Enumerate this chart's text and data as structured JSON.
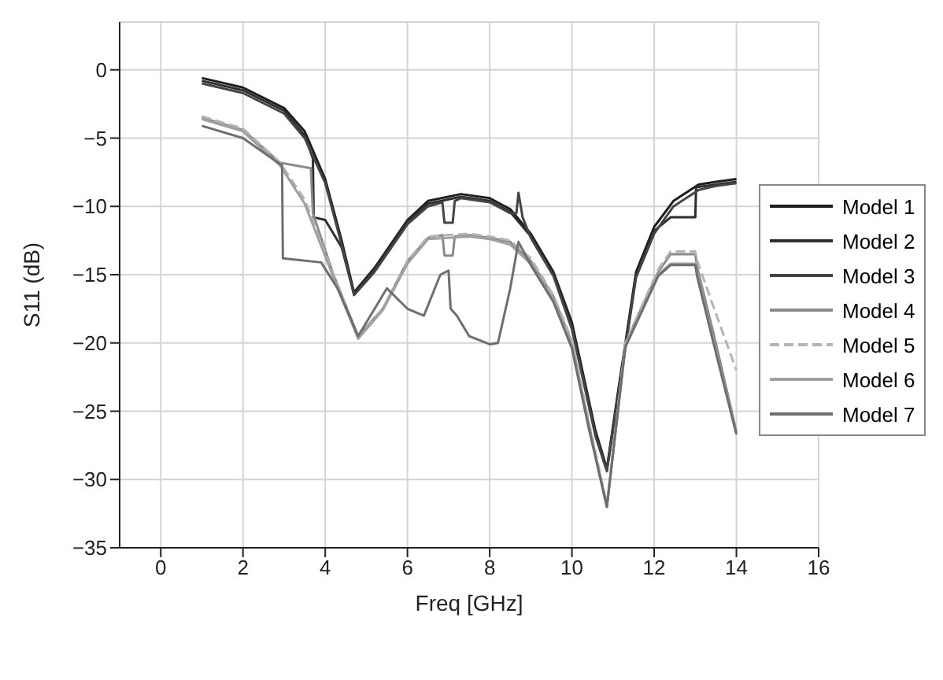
{
  "chart_data": {
    "type": "line",
    "xlabel": "Freq [GHz]",
    "ylabel": "S11 (dB)",
    "xlim": [
      -1,
      16
    ],
    "xticks": [
      0,
      2,
      4,
      6,
      8,
      10,
      12,
      14,
      16
    ],
    "ylim": [
      -35,
      3.5
    ],
    "yticks": [
      -35,
      -30,
      -25,
      -20,
      -15,
      -10,
      -5,
      0
    ],
    "grid": true,
    "legend": "right",
    "marker": "none",
    "line_style": "solid",
    "series": [
      {
        "name": "Model 1",
        "color": "#1e1e1e",
        "x": [
          1,
          2,
          3,
          3.5,
          4,
          4.4,
          4.7,
          5.2,
          6,
          6.5,
          7.3,
          8,
          8.5,
          9,
          9.55,
          10,
          10.57,
          10.85,
          11.1,
          11.56,
          12,
          12.47,
          13.08,
          13.5,
          14
        ],
        "values": [
          -0.6,
          -1.3,
          -2.8,
          -4.5,
          -8,
          -12.5,
          -16.3,
          -14.5,
          -11,
          -9.6,
          -9.1,
          -9.4,
          -10.2,
          -12,
          -14.8,
          -18.5,
          -26.4,
          -29.2,
          -24,
          -14.8,
          -11.5,
          -9.6,
          -8.4,
          -8.2,
          -8
        ]
      },
      {
        "name": "Model 2",
        "color": "#2e2e2e",
        "x": [
          1,
          2,
          3,
          3.5,
          3.7,
          3.72,
          4,
          4.4,
          4.7,
          5.2,
          6,
          6.5,
          7.3,
          8,
          8.5,
          9,
          9.55,
          10,
          10.57,
          10.85,
          11.1,
          11.56,
          12,
          12.4,
          12.5,
          13,
          13.02,
          13.5,
          14
        ],
        "values": [
          -0.8,
          -1.5,
          -3,
          -4.8,
          -6.5,
          -10.8,
          -11,
          -13,
          -16.4,
          -14.6,
          -11.1,
          -9.8,
          -9.3,
          -9.6,
          -10.4,
          -12.2,
          -15,
          -18.8,
          -26.6,
          -29.3,
          -24.2,
          -15,
          -11.8,
          -10.8,
          -10.8,
          -10.8,
          -8.6,
          -8.4,
          -8.2
        ]
      },
      {
        "name": "Model 3",
        "color": "#444444",
        "x": [
          1,
          2,
          3,
          3.5,
          4,
          4.4,
          4.7,
          5.2,
          6,
          6.5,
          6.85,
          6.9,
          7.1,
          7.15,
          7.3,
          8,
          8.5,
          8.65,
          8.7,
          8.8,
          9,
          9.55,
          10,
          10.57,
          10.85,
          11.1,
          11.56,
          12,
          12.47,
          13.08,
          13.5,
          14
        ],
        "values": [
          -1,
          -1.7,
          -3.2,
          -5,
          -8.3,
          -12.8,
          -16.5,
          -14.8,
          -11.3,
          -10,
          -9.7,
          -11.2,
          -11.2,
          -9.6,
          -9.4,
          -9.7,
          -10.5,
          -10.5,
          -9,
          -10.8,
          -12.3,
          -15.1,
          -19,
          -26.8,
          -29.4,
          -24.4,
          -15.2,
          -12,
          -10,
          -8.8,
          -8.5,
          -8.3
        ]
      },
      {
        "name": "Model 4",
        "color": "#8a8a8a",
        "x": [
          1,
          2,
          2.9,
          3.65,
          3.7,
          4.2,
          4.8,
          5.4,
          6,
          6.5,
          6.85,
          6.9,
          7.1,
          7.15,
          7.5,
          8,
          8.5,
          9,
          9.55,
          10,
          10.4,
          10.85,
          11.3,
          12.1,
          12.4,
          13,
          13.05,
          13.5,
          14
        ],
        "values": [
          -3.5,
          -4.4,
          -6.8,
          -7.2,
          -10.5,
          -15,
          -19.5,
          -17.5,
          -14,
          -12.3,
          -12.1,
          -13.6,
          -13.6,
          -12.2,
          -12.1,
          -12.3,
          -12.6,
          -14,
          -16.6,
          -20,
          -25.8,
          -32,
          -20,
          -14.8,
          -13.5,
          -13.5,
          -14.5,
          -20,
          -26.5
        ]
      },
      {
        "name": "Model 5",
        "color": "#b4b4b4",
        "line_style": "dashed",
        "x": [
          1,
          2,
          2.9,
          3.5,
          4.2,
          4.8,
          5.4,
          6,
          6.5,
          7.5,
          8,
          8.5,
          9,
          9.55,
          10,
          10.4,
          10.85,
          11.3,
          12.1,
          12.4,
          13,
          13.05,
          13.4,
          14
        ],
        "values": [
          -3.4,
          -4.3,
          -6.8,
          -9.5,
          -15,
          -19.6,
          -17.5,
          -14,
          -12.2,
          -12,
          -12.2,
          -12.5,
          -13.8,
          -16.5,
          -19.8,
          -25.6,
          -31.8,
          -20,
          -14.6,
          -13.3,
          -13.3,
          -14,
          -17,
          -22
        ]
      },
      {
        "name": "Model 6",
        "color": "#a0a0a0",
        "x": [
          1,
          2,
          2.9,
          3.5,
          4.2,
          4.8,
          5.4,
          6,
          6.5,
          7.5,
          8,
          8.5,
          9,
          9.55,
          10,
          10.4,
          10.85,
          11.3,
          12.1,
          12.4,
          13,
          13.05,
          13.5,
          14
        ],
        "values": [
          -3.6,
          -4.5,
          -7,
          -9.8,
          -15.2,
          -19.7,
          -17.6,
          -14.2,
          -12.4,
          -12.2,
          -12.4,
          -12.8,
          -14.2,
          -16.8,
          -20.2,
          -26,
          -32,
          -20.2,
          -15,
          -14.2,
          -14.2,
          -15,
          -20.5,
          -26.6
        ]
      },
      {
        "name": "Model 7",
        "color": "#6e6e6e",
        "x": [
          1,
          2,
          2.95,
          2.97,
          3.9,
          4.3,
          4.8,
          5.3,
          5.5,
          6,
          6.4,
          6.8,
          7,
          7.05,
          7.2,
          7.5,
          8,
          8.2,
          8.5,
          8.7,
          9,
          9.55,
          10,
          10.4,
          10.85,
          11.3,
          12.1,
          12.4,
          13,
          13.05,
          13.5,
          14
        ],
        "values": [
          -4.1,
          -5,
          -7,
          -13.8,
          -14.1,
          -16,
          -19.5,
          -17,
          -16,
          -17.5,
          -18,
          -15,
          -14.7,
          -17.5,
          -18,
          -19.5,
          -20.1,
          -20,
          -16,
          -12.6,
          -14.3,
          -17,
          -20.4,
          -26.1,
          -32,
          -20.3,
          -15.1,
          -14.3,
          -14.3,
          -15.2,
          -20.7,
          -26.7
        ]
      }
    ]
  }
}
